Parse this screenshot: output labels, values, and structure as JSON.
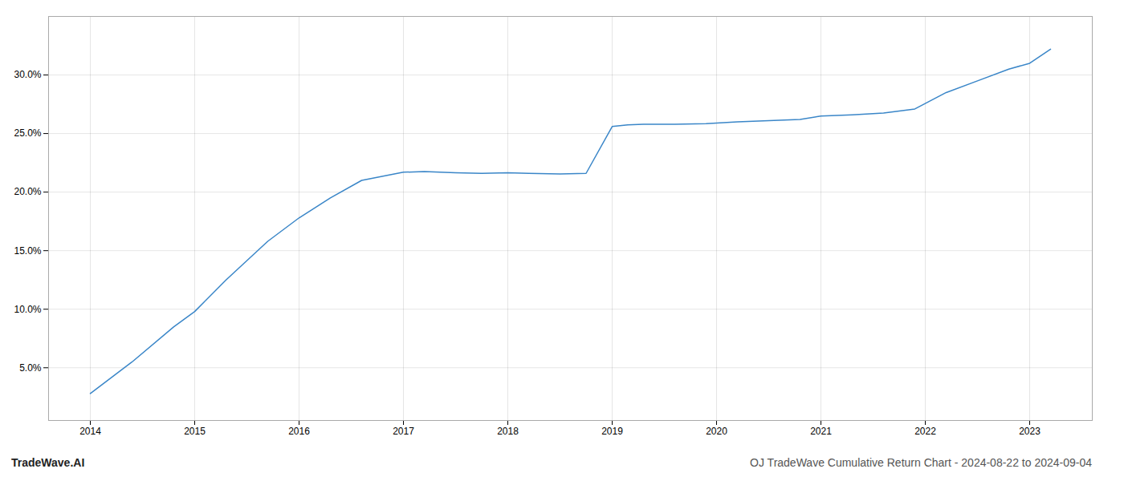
{
  "chart_data": {
    "type": "line",
    "title": "OJ TradeWave Cumulative Return Chart - 2024-08-22 to 2024-09-04",
    "annotations": [
      "TradeWave.AI"
    ],
    "x": [
      2014.0,
      2014.4,
      2014.8,
      2015.0,
      2015.3,
      2015.7,
      2016.0,
      2016.3,
      2016.6,
      2017.0,
      2017.2,
      2017.5,
      2017.75,
      2018.0,
      2018.2,
      2018.5,
      2018.75,
      2019.0,
      2019.15,
      2019.3,
      2019.6,
      2019.9,
      2020.2,
      2020.5,
      2020.8,
      2021.0,
      2021.3,
      2021.6,
      2021.9,
      2022.2,
      2022.5,
      2022.8,
      2023.0,
      2023.2
    ],
    "values": [
      2.8,
      5.5,
      8.5,
      9.8,
      12.5,
      15.8,
      17.8,
      19.5,
      21.0,
      21.7,
      21.75,
      21.65,
      21.6,
      21.65,
      21.6,
      21.55,
      21.6,
      25.6,
      25.75,
      25.8,
      25.8,
      25.85,
      26.0,
      26.1,
      26.2,
      26.5,
      26.6,
      26.75,
      27.1,
      28.5,
      29.5,
      30.5,
      31.0,
      32.2
    ],
    "color": "#3a86c8",
    "xlim": [
      2013.6,
      2023.6
    ],
    "xticks": [
      2014,
      2015,
      2016,
      2017,
      2018,
      2019,
      2020,
      2021,
      2022,
      2023
    ],
    "ylim": [
      0.5,
      35.0
    ],
    "yticks": [
      {
        "value": 5.0,
        "label": "5.0%"
      },
      {
        "value": 10.0,
        "label": "10.0%"
      },
      {
        "value": 15.0,
        "label": "15.0%"
      },
      {
        "value": 20.0,
        "label": "20.0%"
      },
      {
        "value": 25.0,
        "label": "25.0%"
      },
      {
        "value": 30.0,
        "label": "30.0%"
      }
    ],
    "grid": true
  }
}
